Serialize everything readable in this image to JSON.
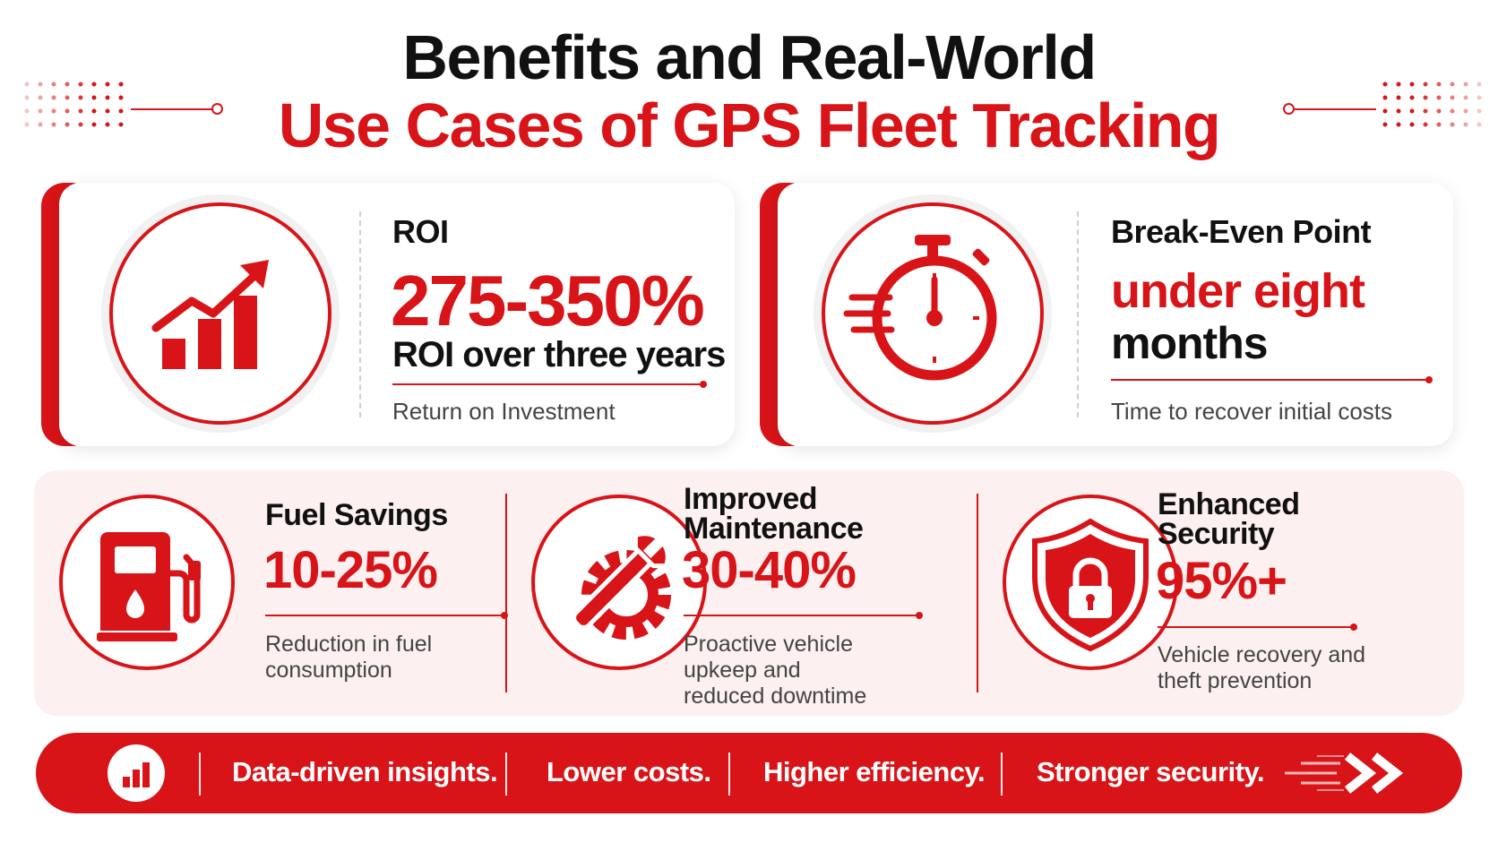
{
  "header": {
    "title_line1": "Benefits and Real-World",
    "title_line2": "Use Cases of GPS Fleet Tracking"
  },
  "top_cards": [
    {
      "icon": "growth-chart-icon",
      "label": "ROI",
      "value": "275-350%",
      "subtitle": "ROI over three years",
      "description": "Return on Investment"
    },
    {
      "icon": "stopwatch-icon",
      "label": "Break-Even Point",
      "value": "under eight",
      "value_line2": "months",
      "description": "Time to recover initial costs"
    }
  ],
  "benefits": [
    {
      "icon": "fuel-pump-icon",
      "label": "Fuel Savings",
      "value": "10-25%",
      "description": "Reduction in fuel consumption"
    },
    {
      "icon": "wrench-gear-icon",
      "label": "Improved Maintenance",
      "value": "30-40%",
      "description": "Proactive vehicle upkeep and reduced downtime"
    },
    {
      "icon": "shield-lock-icon",
      "label": "Enhanced Security",
      "value": "95%+",
      "description": "Vehicle recovery and theft prevention"
    }
  ],
  "banner": {
    "icon": "bar-chart-icon",
    "items": [
      "Data-driven insights.",
      "Lower costs.",
      "Higher efficiency.",
      "Stronger security."
    ],
    "end_icon": "double-chevron-right-icon"
  },
  "colors": {
    "accent": "#d81418",
    "text": "#111111",
    "muted": "#444444",
    "panel_tint": "#fcf0f0"
  }
}
